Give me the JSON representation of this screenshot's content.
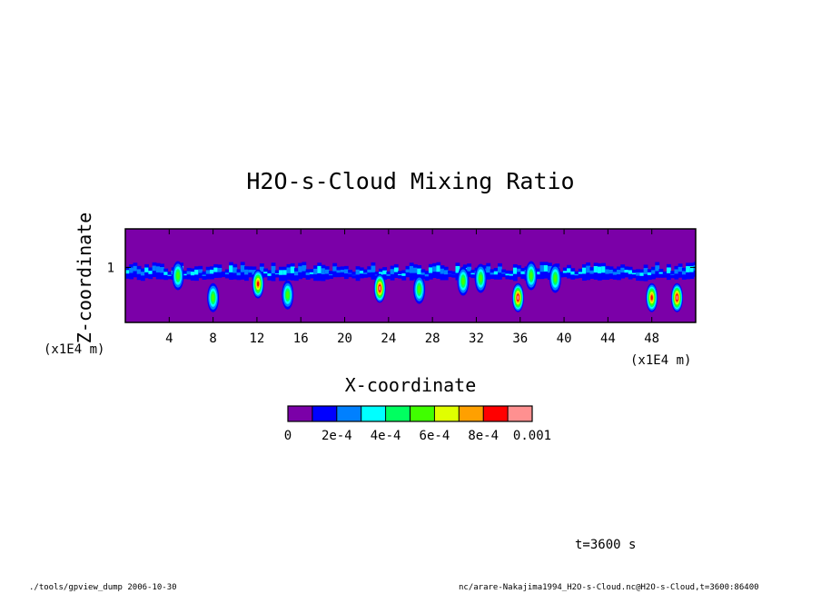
{
  "chart_data": {
    "type": "heatmap",
    "title": "H2O-s-Cloud Mixing Ratio",
    "xlabel": "X-coordinate",
    "ylabel": "Z-coordinate",
    "x_unit": "(x1E4 m)",
    "y_unit": "(x1E4 m)",
    "xlim": [
      0,
      52
    ],
    "ylim": [
      0,
      1.7
    ],
    "x_ticks": [
      4,
      8,
      12,
      16,
      20,
      24,
      28,
      32,
      36,
      40,
      44,
      48
    ],
    "x_tick_labels": [
      "4",
      "8",
      "12",
      "16",
      "20",
      "24",
      "28",
      "32",
      "36",
      "40",
      "44",
      "48"
    ],
    "y_ticks": [
      1
    ],
    "y_tick_labels": [
      "1"
    ],
    "cloud_layer_z": [
      0.75,
      1.1
    ],
    "cells": [
      {
        "x": 4.8,
        "z": 0.85,
        "value": 0.0005
      },
      {
        "x": 8.0,
        "z": 0.45,
        "value": 0.0005
      },
      {
        "x": 12.1,
        "z": 0.7,
        "value": 0.0008
      },
      {
        "x": 14.8,
        "z": 0.5,
        "value": 0.0005
      },
      {
        "x": 23.2,
        "z": 0.62,
        "value": 0.0009
      },
      {
        "x": 26.8,
        "z": 0.6,
        "value": 0.0005
      },
      {
        "x": 30.8,
        "z": 0.75,
        "value": 0.0005
      },
      {
        "x": 32.4,
        "z": 0.8,
        "value": 0.0005
      },
      {
        "x": 35.8,
        "z": 0.45,
        "value": 0.0009
      },
      {
        "x": 37.0,
        "z": 0.85,
        "value": 0.0005
      },
      {
        "x": 39.2,
        "z": 0.8,
        "value": 0.0005
      },
      {
        "x": 48.0,
        "z": 0.45,
        "value": 0.0008
      },
      {
        "x": 50.3,
        "z": 0.45,
        "value": 0.0009
      }
    ],
    "colorbar": {
      "colors": [
        "#7b00a8",
        "#0000ff",
        "#0080ff",
        "#00ffff",
        "#00ff60",
        "#40ff00",
        "#e0ff00",
        "#ffa000",
        "#ff0000",
        "#ff9090"
      ],
      "tick_labels": [
        "0",
        "2e-4",
        "4e-4",
        "6e-4",
        "8e-4",
        "0.001"
      ]
    }
  },
  "annotations": {
    "time": "t=3600 s",
    "footer_left": "./tools/gpview_dump  2006-10-30",
    "footer_right": "nc/arare-Nakajima1994_H2O-s-Cloud.nc@H2O-s-Cloud,t=3600:86400"
  }
}
